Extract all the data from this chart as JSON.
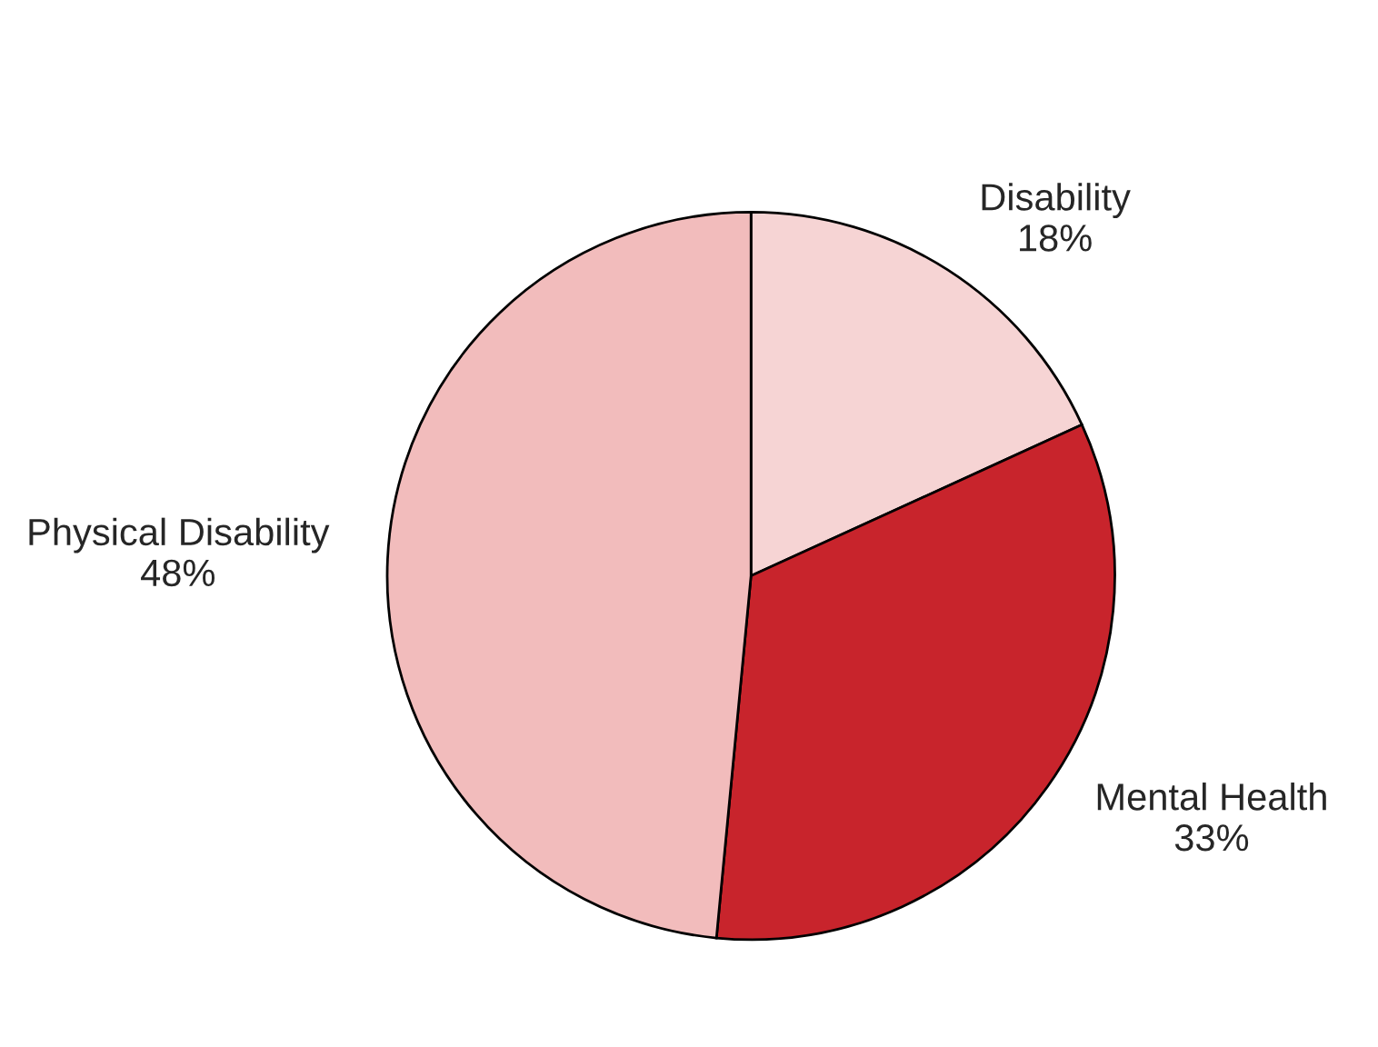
{
  "chart_data": {
    "type": "pie",
    "categories": [
      "Disability",
      "Mental Health",
      "Physical Disability"
    ],
    "values": [
      18,
      33,
      48
    ],
    "value_labels": [
      "18%",
      "33%",
      "48%"
    ],
    "colors": [
      "#f6d4d4",
      "#c8242c",
      "#f2bcbc"
    ]
  }
}
